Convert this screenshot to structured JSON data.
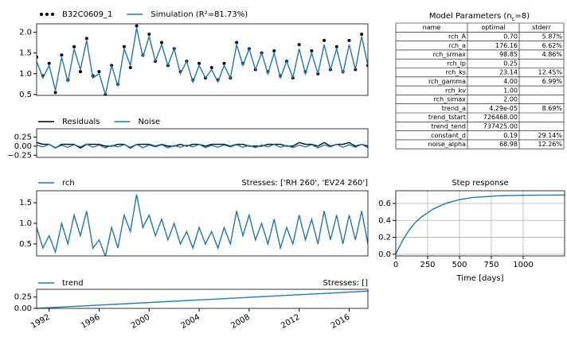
{
  "chart_data": [
    {
      "type": "line",
      "x": [
        1991,
        1991.5,
        1992,
        1992.5,
        1993,
        1993.5,
        1994,
        1994.5,
        1995,
        1995.5,
        1996,
        1996.5,
        1997,
        1997.5,
        1998,
        1998.5,
        1999,
        1999.5,
        2000,
        2000.5,
        2001,
        2001.5,
        2002,
        2002.5,
        2003,
        2003.5,
        2004,
        2004.5,
        2005,
        2005.5,
        2006,
        2006.5,
        2007,
        2007.5,
        2008,
        2008.5,
        2009,
        2009.5,
        2010,
        2010.5,
        2011,
        2011.5,
        2012,
        2012.5,
        2013,
        2013.5,
        2014,
        2014.5,
        2015,
        2015.5,
        2016,
        2016.5,
        2017,
        2017.5
      ],
      "xlim": [
        1991,
        2017.5
      ],
      "ylim": [
        0.48,
        2.2
      ],
      "yticks": [
        0.5,
        {
          "value": 1,
          "label": "1.0"
        },
        1.5,
        {
          "value": 2,
          "label": "2.0"
        }
      ],
      "series": [
        {
          "name": "B32C0609_1",
          "color": "#000000",
          "style": "markers",
          "values": [
            1.4,
            0.95,
            1.25,
            0.55,
            1.45,
            0.85,
            1.65,
            1.05,
            1.85,
            0.95,
            1.05,
            0.5,
            1.2,
            0.75,
            1.65,
            1.15,
            2.15,
            1.45,
            1.95,
            1.3,
            1.75,
            1.2,
            1.6,
            1.05,
            1.3,
            0.85,
            1.25,
            0.9,
            1.15,
            0.85,
            1.25,
            0.9,
            1.75,
            1.25,
            1.6,
            1.1,
            1.5,
            1.05,
            1.55,
            0.95,
            1.3,
            0.9,
            1.7,
            1.05,
            1.55,
            1.0,
            1.8,
            1.1,
            1.65,
            1.05,
            1.8,
            1.1,
            1.95,
            1.2
          ]
        },
        {
          "name": "Simulation (R²=81.73%)",
          "color": "#1f77b4",
          "style": "line",
          "values": [
            1.3,
            0.9,
            1.2,
            0.6,
            1.4,
            0.8,
            1.6,
            1.1,
            1.8,
            0.9,
            1.0,
            0.5,
            1.2,
            0.7,
            1.6,
            1.2,
            2.1,
            1.4,
            1.9,
            1.3,
            1.7,
            1.2,
            1.6,
            1.0,
            1.3,
            0.8,
            1.2,
            0.9,
            1.1,
            0.8,
            1.2,
            0.9,
            1.7,
            1.2,
            1.6,
            1.1,
            1.5,
            1.0,
            1.5,
            0.9,
            1.3,
            0.9,
            1.6,
            1.0,
            1.5,
            1.0,
            1.7,
            1.1,
            1.6,
            1.0,
            1.7,
            1.1,
            1.9,
            1.2
          ]
        }
      ]
    },
    {
      "type": "line",
      "x": [
        1991,
        1991.5,
        1992,
        1992.5,
        1993,
        1993.5,
        1994,
        1994.5,
        1995,
        1995.5,
        1996,
        1996.5,
        1997,
        1997.5,
        1998,
        1998.5,
        1999,
        1999.5,
        2000,
        2000.5,
        2001,
        2001.5,
        2002,
        2002.5,
        2003,
        2003.5,
        2004,
        2004.5,
        2005,
        2005.5,
        2006,
        2006.5,
        2007,
        2007.5,
        2008,
        2008.5,
        2009,
        2009.5,
        2010,
        2010.5,
        2011,
        2011.5,
        2012,
        2012.5,
        2013,
        2013.5,
        2014,
        2014.5,
        2015,
        2015.5,
        2016,
        2016.5,
        2017,
        2017.5
      ],
      "xlim": [
        1991,
        2017.5
      ],
      "ylim": [
        -0.31,
        0.48
      ],
      "yticks": [
        0.25,
        {
          "value": 0,
          "label": "0.00"
        },
        {
          "value": -0.25,
          "label": "−0.25"
        }
      ],
      "series": [
        {
          "name": "Residuals",
          "color": "#000000",
          "style": "line",
          "values": [
            0.1,
            0.05,
            0.05,
            -0.05,
            0.05,
            0.05,
            0.05,
            -0.05,
            0.05,
            0.05,
            0.05,
            0,
            0,
            0.05,
            0.05,
            -0.05,
            0.05,
            0.05,
            0.05,
            0,
            0.05,
            0,
            0,
            0.05,
            0,
            0.05,
            0.05,
            0,
            0.05,
            0.05,
            0.05,
            0,
            0.05,
            0.05,
            0,
            0,
            0,
            0.05,
            0.05,
            0.05,
            0,
            0,
            0.1,
            0.05,
            0.05,
            0,
            0.1,
            0,
            0.05,
            0.05,
            0.1,
            0,
            0.05,
            0
          ]
        },
        {
          "name": "Noise",
          "color": "#1f77b4",
          "style": "line",
          "values": [
            0.03,
            -0.02,
            0.05,
            -0.04,
            0.02,
            -0.03,
            0.04,
            -0.02,
            0.06,
            -0.03,
            0.03,
            -0.05,
            0.02,
            -0.02,
            0.04,
            -0.03,
            0.05,
            -0.04,
            0.03,
            -0.02,
            0.04,
            -0.05,
            0.02,
            -0.03,
            0.03,
            -0.02,
            0.05,
            -0.04,
            0.02,
            -0.03,
            0.03,
            -0.02,
            0.04,
            -0.03,
            0.02,
            -0.04,
            0.03,
            -0.02,
            0.05,
            -0.03,
            0.02,
            -0.04,
            0.03,
            -0.02,
            0.04,
            -0.05,
            0.03,
            -0.02,
            0.05,
            -0.03,
            0.04,
            -0.03,
            0.05,
            -0.04
          ]
        }
      ]
    },
    {
      "type": "line",
      "subtitle": "Stresses: ['RH 260', 'EV24 260']",
      "x": [
        1991,
        1991.5,
        1992,
        1992.5,
        1993,
        1993.5,
        1994,
        1994.5,
        1995,
        1995.5,
        1996,
        1996.5,
        1997,
        1997.5,
        1998,
        1998.5,
        1999,
        1999.5,
        2000,
        2000.5,
        2001,
        2001.5,
        2002,
        2002.5,
        2003,
        2003.5,
        2004,
        2004.5,
        2005,
        2005.5,
        2006,
        2006.5,
        2007,
        2007.5,
        2008,
        2008.5,
        2009,
        2009.5,
        2010,
        2010.5,
        2011,
        2011.5,
        2012,
        2012.5,
        2013,
        2013.5,
        2014,
        2014.5,
        2015,
        2015.5,
        2016,
        2016.5,
        2017,
        2017.5
      ],
      "xlim": [
        1991,
        2017.5
      ],
      "ylim": [
        0.21,
        1.79
      ],
      "yticks": [
        0.5,
        {
          "value": 1,
          "label": "1.0"
        },
        1.5
      ],
      "series": [
        {
          "name": "rch",
          "color": "#1f77b4",
          "style": "line",
          "values": [
            0.9,
            0.4,
            0.7,
            0.3,
            1.0,
            0.5,
            1.2,
            0.7,
            1.3,
            0.4,
            0.6,
            0.2,
            0.9,
            0.4,
            1.2,
            0.8,
            1.7,
            0.9,
            1.2,
            0.7,
            1.1,
            0.6,
            1.0,
            0.5,
            0.8,
            0.4,
            0.9,
            0.5,
            0.8,
            0.4,
            0.9,
            0.5,
            1.3,
            0.7,
            1.2,
            0.6,
            1.0,
            0.5,
            1.1,
            0.4,
            0.9,
            0.5,
            1.2,
            0.6,
            1.1,
            0.5,
            1.3,
            0.6,
            1.2,
            0.5,
            1.2,
            0.6,
            1.3,
            0.5
          ]
        }
      ]
    },
    {
      "type": "line",
      "subtitle": "Stresses: []",
      "x": [
        1991,
        2017.5
      ],
      "xlim": [
        1991,
        2017.5
      ],
      "ylim": [
        0,
        0.42
      ],
      "yticks": [
        {
          "value": 0,
          "label": "0.00"
        },
        0.25
      ],
      "xticks": [
        1992,
        1996,
        2000,
        2004,
        2008,
        2012,
        2016
      ],
      "series": [
        {
          "name": "trend",
          "color": "#1f77b4",
          "style": "line",
          "values": [
            0,
            0.38
          ]
        }
      ]
    },
    {
      "type": "line",
      "title": "Step response",
      "xlabel": "Time [days]",
      "grid": true,
      "x": [
        0,
        50,
        100,
        150,
        200,
        300,
        400,
        500,
        600,
        800,
        1000,
        1325
      ],
      "xlim": [
        0,
        1325
      ],
      "ylim": [
        -0.02,
        0.75
      ],
      "xticks": [
        0,
        250,
        500,
        750,
        1000
      ],
      "yticks": [
        {
          "value": 0,
          "label": "0.0"
        },
        0.2,
        0.4,
        0.6
      ],
      "series": [
        {
          "color": "#1f77b4",
          "style": "line",
          "values": [
            0,
            0.155,
            0.275,
            0.37,
            0.44,
            0.54,
            0.605,
            0.645,
            0.67,
            0.69,
            0.697,
            0.7
          ]
        }
      ]
    }
  ],
  "parameters_table": {
    "title": "Model Parameters (n",
    "title_subscript": "c",
    "title_end": "=8)",
    "columns": [
      "name",
      "optimal",
      "stderr"
    ],
    "rows": [
      [
        "rch_A",
        "0.70",
        "5.87%"
      ],
      [
        "rch_a",
        "176.16",
        "6.62%"
      ],
      [
        "rch_srmax",
        "98.85",
        "4.86%"
      ],
      [
        "rch_lp",
        "0.25",
        null
      ],
      [
        "rch_ks",
        "23.14",
        "12.45%"
      ],
      [
        "rch_gamma",
        "4.00",
        "6.99%"
      ],
      [
        "rch_kv",
        "1.00",
        null
      ],
      [
        "rch_simax",
        "2.00",
        null
      ],
      [
        "trend_a",
        "4.29e-05",
        "8.69%"
      ],
      [
        "trend_tstart",
        "726468.00",
        null
      ],
      [
        "trend_tend",
        "737425.00",
        null
      ],
      [
        "constant_d",
        "0.19",
        "29.14%"
      ],
      [
        "noise_alpha",
        "68.98",
        "12.26%"
      ]
    ]
  }
}
